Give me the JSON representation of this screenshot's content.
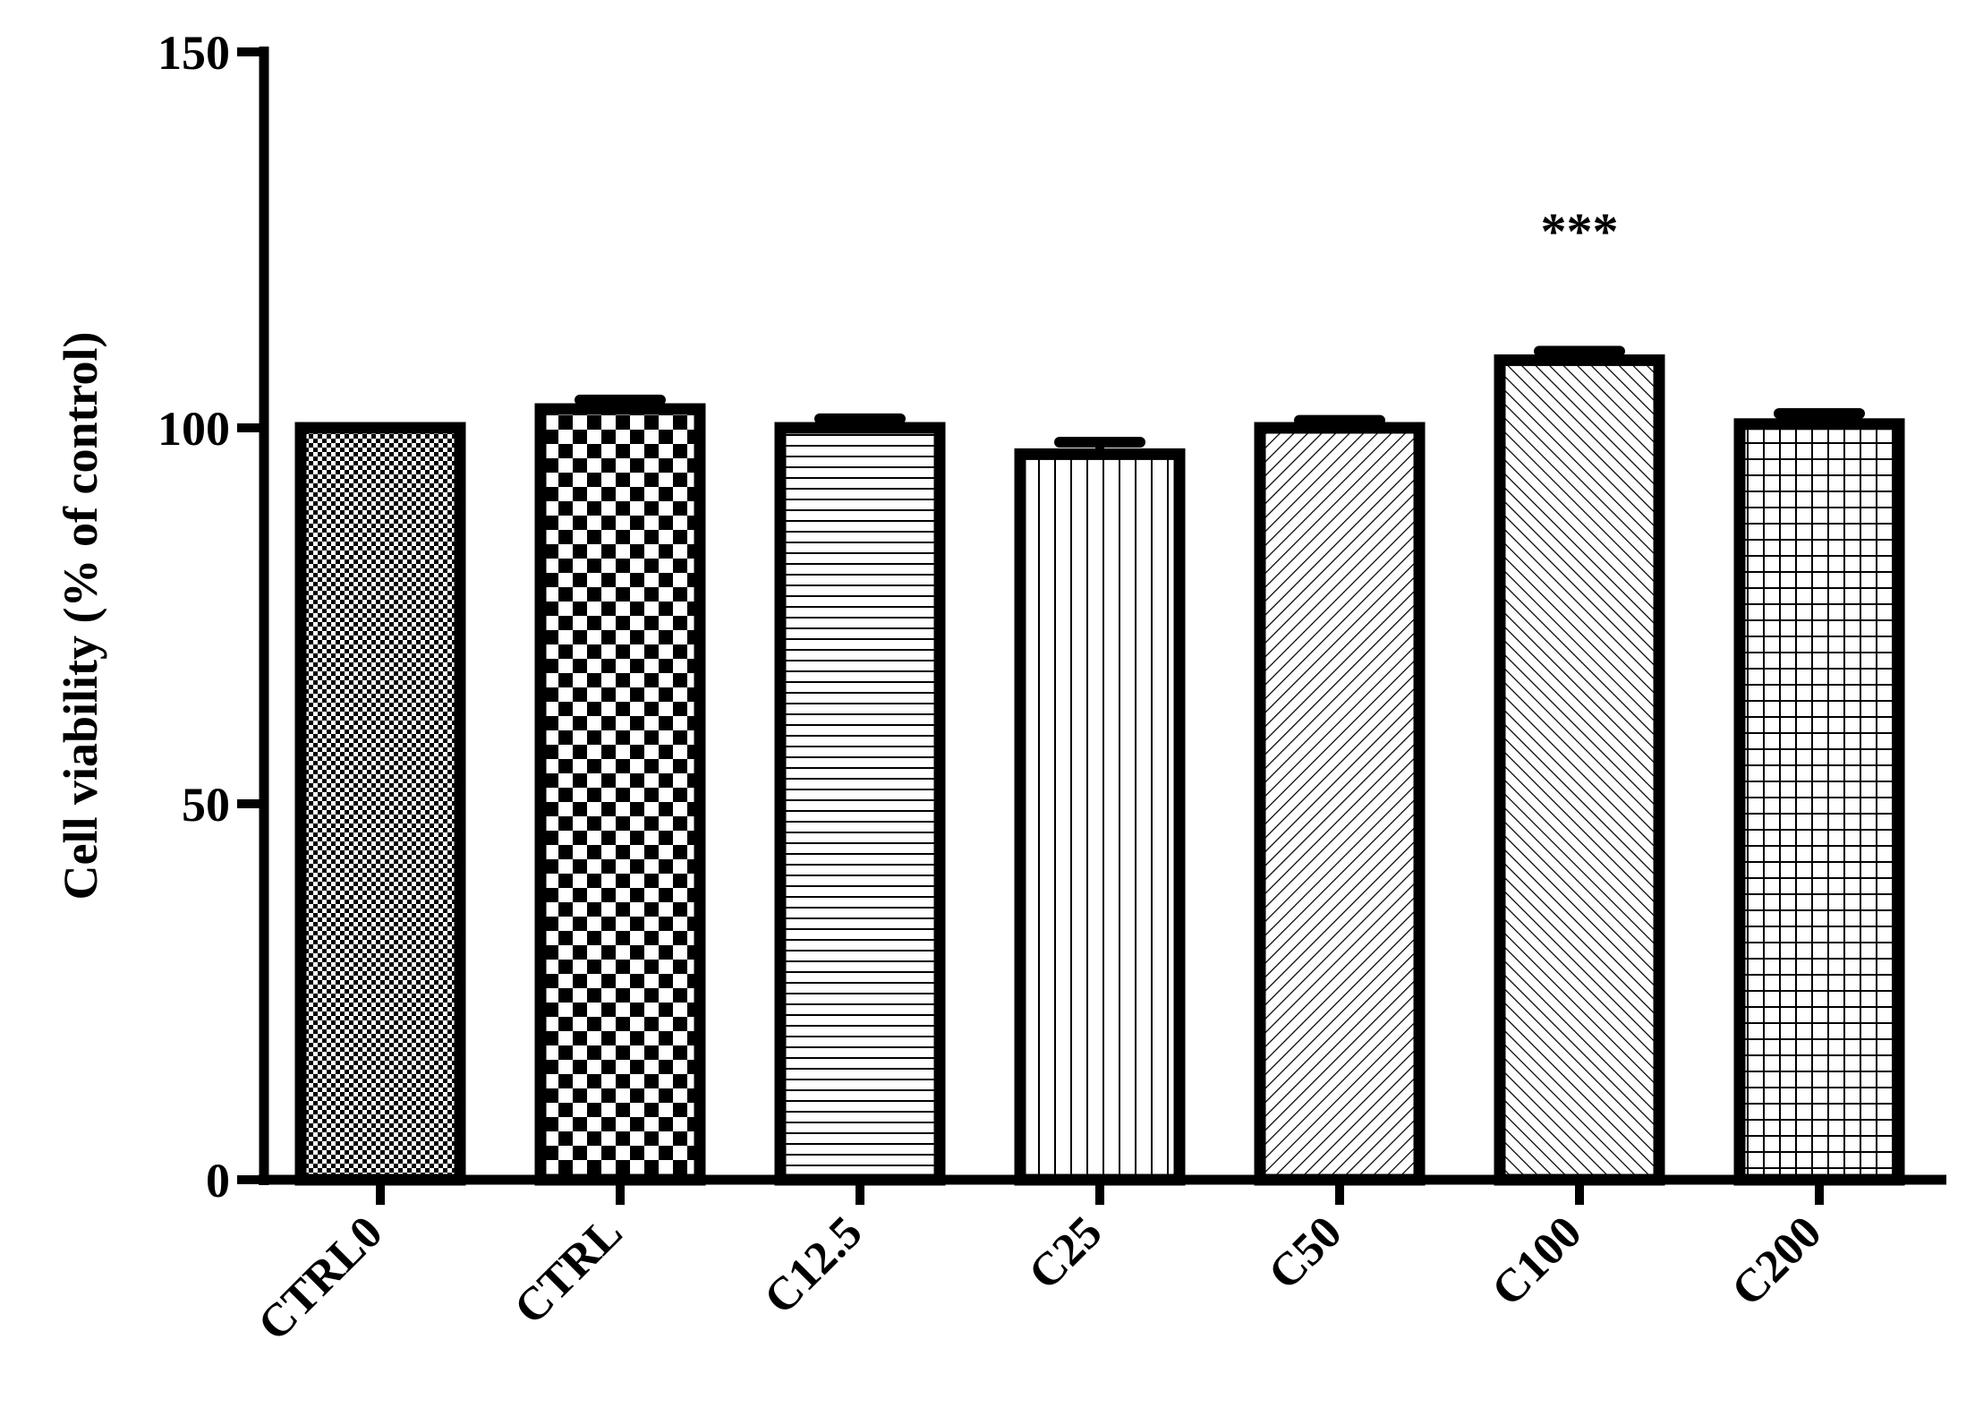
{
  "chart_data": {
    "type": "bar",
    "title": "",
    "xlabel": "",
    "ylabel": "Cell viability (% of control)",
    "ylim": [
      0,
      150
    ],
    "yticks": [
      "0",
      "50",
      "100",
      "150"
    ],
    "categories": [
      "CTRL0",
      "CTRL",
      "C12.5",
      "C25",
      "C50",
      "C100",
      "C200"
    ],
    "values": [
      100,
      102.5,
      100,
      96.5,
      100,
      109,
      100.5
    ],
    "errors": [
      0,
      1.2,
      1.2,
      1.6,
      1.0,
      1.2,
      1.4
    ],
    "patterns": [
      "fine-checker",
      "coarse-checker",
      "horizontal-lines",
      "vertical-lines",
      "diagonal-forward",
      "diagonal-backward",
      "grid"
    ],
    "annotations": [
      {
        "category": "C100",
        "text": "***"
      }
    ],
    "grid": false,
    "legend": "none",
    "colors": {
      "stroke": "#000000",
      "fill": "#ffffff"
    }
  }
}
